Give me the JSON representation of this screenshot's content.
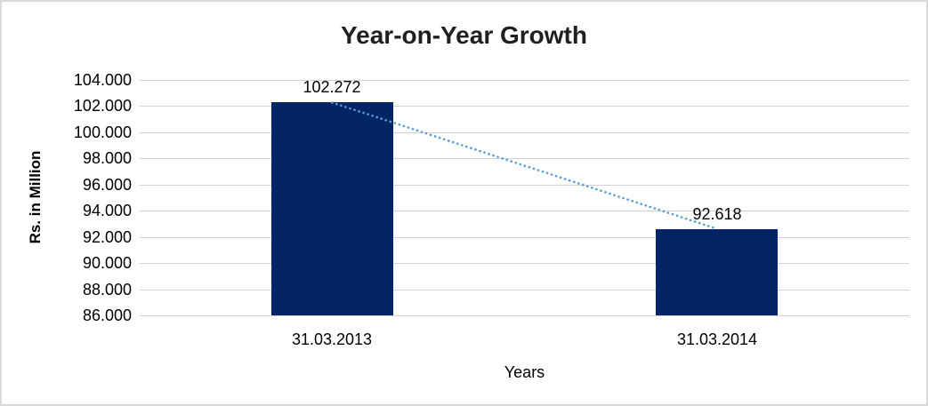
{
  "chart_data": {
    "type": "bar",
    "title": "Year-on-Year Growth",
    "xlabel": "Years",
    "ylabel": "Rs. in Million",
    "categories": [
      "31.03.2013",
      "31.03.2014"
    ],
    "values": [
      102.272,
      92.618
    ],
    "value_labels": [
      "102.272",
      "92.618"
    ],
    "ylim": [
      86,
      104
    ],
    "ytick_step": 2,
    "ytick_labels": [
      "104.000",
      "102.000",
      "100.000",
      "98.000",
      "96.000",
      "94.000",
      "92.000",
      "90.000",
      "88.000",
      "86.000"
    ],
    "grid": true,
    "legend_position": "none",
    "trendline": {
      "style": "dotted",
      "from_value": 102.272,
      "to_value": 92.618
    },
    "colors": {
      "bar": "#032566",
      "trendline": "#5b9bd5",
      "gridline": "#d3d3d3",
      "frame_border": "#d9d9d9",
      "title_text": "#1f1f1f",
      "axis_text": "#000000",
      "background": "#ffffff"
    }
  }
}
